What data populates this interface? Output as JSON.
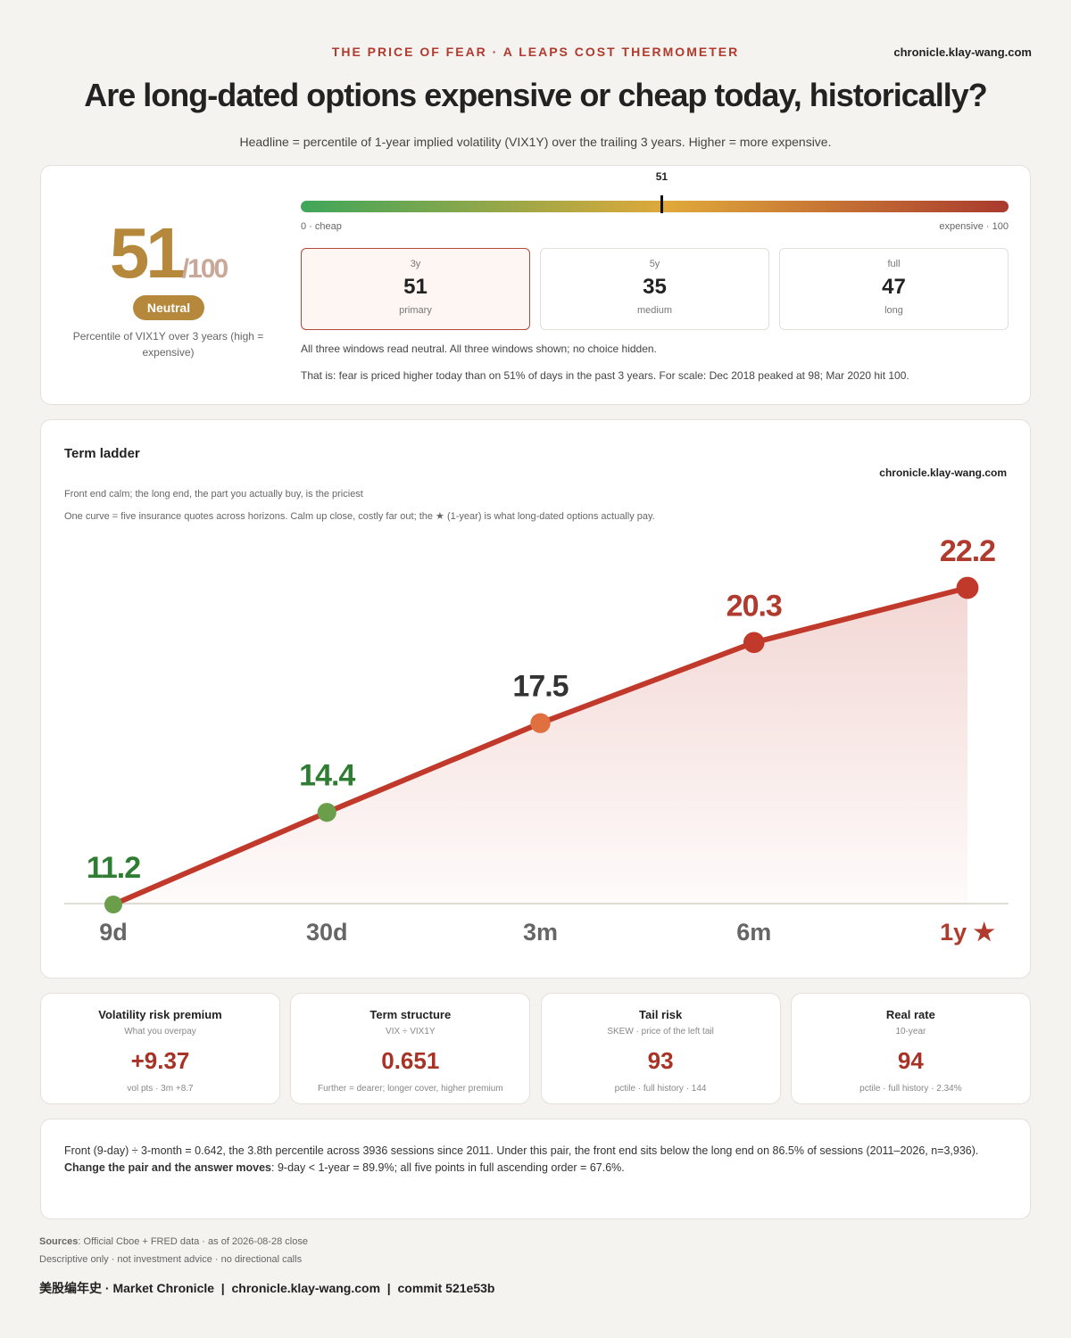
{
  "header": {
    "kicker": "THE PRICE OF FEAR · A LEAPS COST THERMOMETER",
    "site": "chronicle.klay-wang.com",
    "title": "Are long-dated options expensive or cheap today, historically?",
    "subtitle": "Headline = percentile of 1-year implied volatility (VIX1Y) over the trailing 3 years. Higher = more expensive."
  },
  "score": {
    "value": 51,
    "suffix": "/100",
    "badge": "Neutral",
    "caption": "Percentile of VIX1Y over 3 years (high = expensive)"
  },
  "gauge": {
    "value": 51,
    "lim": [
      0,
      100
    ],
    "min_label": "0 · cheap",
    "max_label": "expensive · 100"
  },
  "windows": [
    {
      "label": "3y",
      "value": 51,
      "note": "primary"
    },
    {
      "label": "5y",
      "value": 35,
      "note": "medium"
    },
    {
      "label": "full",
      "value": 47,
      "note": "long"
    }
  ],
  "notes": [
    "All three windows read neutral. All three windows shown; no choice hidden.",
    "That is: fear is priced higher today than on 51% of days in the past 3 years. For scale: Dec 2018 peaked at 98; Mar 2020 hit 100."
  ],
  "chart_data": {
    "type": "line",
    "title": "Term ladder",
    "site": "chronicle.klay-wang.com",
    "subtitle": "Front end calm; the long end, the part you actually buy, is the priciest",
    "description": "One curve = five insurance quotes across horizons. Calm up close, costly far out; the ★ (1-year) is what long-dated options actually pay.",
    "categories": [
      "9d",
      "30d",
      "3m",
      "6m",
      "1y ★"
    ],
    "values": [
      11.2,
      14.4,
      17.5,
      20.3,
      22.2
    ],
    "point_colors": [
      "#6a9e4a",
      "#6a9e4a",
      "#e07040",
      "#c0392b",
      "#c0392b"
    ],
    "label_colors": [
      "#2e7d32",
      "#2e7d32",
      "#333333",
      "#b03a2e",
      "#b03a2e"
    ],
    "color": "#c0392b",
    "ylim": [
      11.2,
      22.2
    ]
  },
  "metrics": [
    {
      "title": "Volatility risk premium",
      "subtitle": "What you overpay",
      "value": "+9.37",
      "note": "vol pts · 3m +8.7"
    },
    {
      "title": "Term structure",
      "subtitle": "VIX ÷ VIX1Y",
      "value": "0.651",
      "note": "Further = dearer; longer cover, higher premium"
    },
    {
      "title": "Tail risk",
      "subtitle": "SKEW · price of the left tail",
      "value": "93",
      "note": "pctile · full history · 144"
    },
    {
      "title": "Real rate",
      "subtitle": "10-year",
      "value": "94",
      "note": "pctile · full history · 2.34%"
    }
  ],
  "footnote": {
    "line1": "Front (9-day) ÷ 3-month = 0.642, the 3.8th percentile across 3936 sessions since 2011. Under this pair, the front end sits below the long end on 86.5% of sessions (2011–2026, n=3,936).",
    "line2_bold": "Change the pair and the answer moves",
    "line2": ": 9-day < 1-year = 89.9%; all five points in full ascending order = 67.6%."
  },
  "sources": {
    "label": "Sources",
    "text": ": Official Cboe + FRED data · as of 2026-08-28 close",
    "disclaimer": "Descriptive only · not investment advice · no directional calls",
    "brand": "美股编年史 · Market Chronicle",
    "site": "chronicle.klay-wang.com",
    "commit": "commit 521e53b"
  }
}
